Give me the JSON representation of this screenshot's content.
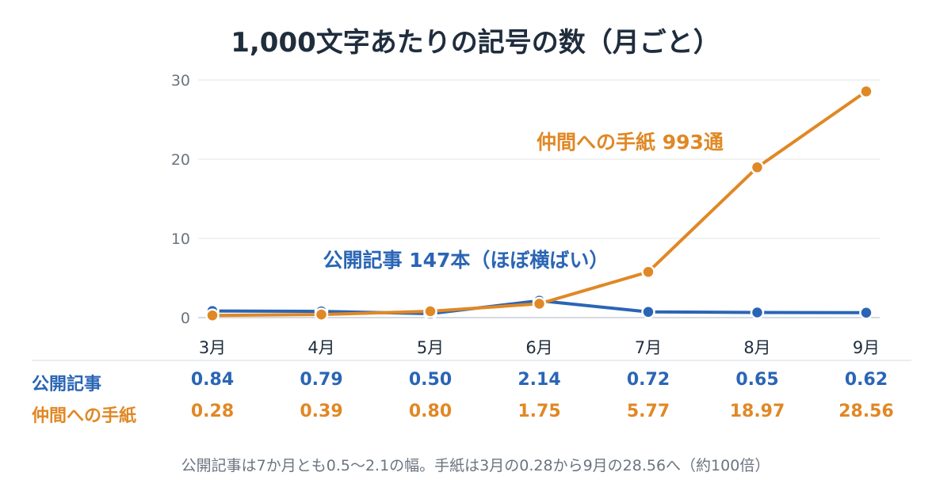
{
  "title": "1,000文字あたりの記号の数（月ごと）",
  "chart_data": {
    "type": "line",
    "categories": [
      "3月",
      "4月",
      "5月",
      "6月",
      "7月",
      "8月",
      "9月"
    ],
    "y_ticks": [
      "0",
      "10",
      "20",
      "30"
    ],
    "ylim": [
      0,
      30
    ],
    "grid": true,
    "series": [
      {
        "name": "公開記事",
        "annotation": "公開記事 147本（ほぼ横ばい）",
        "color": "#2a65b5",
        "values": [
          0.84,
          0.79,
          0.5,
          2.14,
          0.72,
          0.65,
          0.62
        ],
        "labels": [
          "0.84",
          "0.79",
          "0.50",
          "2.14",
          "0.72",
          "0.65",
          "0.62"
        ]
      },
      {
        "name": "仲間への手紙",
        "annotation": "仲間への手紙 993通",
        "color": "#e08825",
        "values": [
          0.28,
          0.39,
          0.8,
          1.75,
          5.77,
          18.97,
          28.56
        ],
        "labels": [
          "0.28",
          "0.39",
          "0.80",
          "1.75",
          "5.77",
          "18.97",
          "28.56"
        ]
      }
    ]
  },
  "note": "公開記事は7か月とも0.5〜2.1の幅。手紙は3月の0.28から9月の28.56へ（約100倍）"
}
